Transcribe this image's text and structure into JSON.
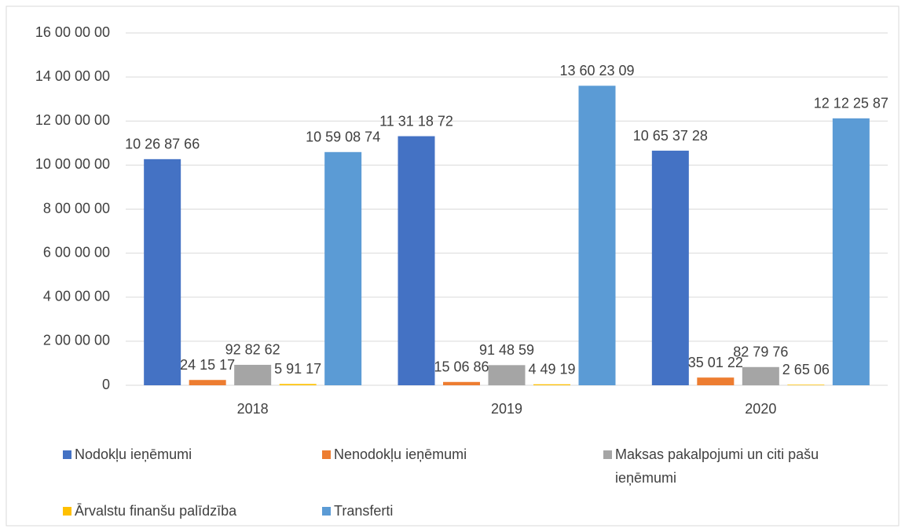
{
  "chart_data": {
    "type": "bar",
    "categories": [
      "2018",
      "2019",
      "2020"
    ],
    "series": [
      {
        "name": "Nodokļu ieņēmumi",
        "color": "#4472c4",
        "values": [
          10268766,
          11311872,
          10653728
        ],
        "value_labels": [
          "10 26 87 66",
          "11 31 18 72",
          "10 65 37 28"
        ]
      },
      {
        "name": "Nenodokļu ieņēmumi",
        "color": "#ed7d31",
        "values": [
          241517,
          150686,
          350122
        ],
        "value_labels": [
          "24 15 17",
          "15 06 86",
          "35 01 22"
        ]
      },
      {
        "name": "Maksas pakalpojumi un citi pašu ieņēmumi",
        "color": "#a5a5a5",
        "values": [
          928262,
          914859,
          827976
        ],
        "value_labels": [
          "92 82 62",
          "91 48 59",
          "82 79 76"
        ]
      },
      {
        "name": "Ārvalstu finanšu palīdzība",
        "color": "#ffc000",
        "values": [
          59117,
          44919,
          26506
        ],
        "value_labels": [
          "5 91 17",
          "4 49 19",
          "2 65 06"
        ]
      },
      {
        "name": "Transferti",
        "color": "#5b9bd5",
        "values": [
          10590874,
          13602309,
          12122587
        ],
        "value_labels": [
          "10 59 08 74",
          "13 60 23 09",
          "12 12 25 87"
        ]
      }
    ],
    "ylim": [
      0,
      16000000
    ],
    "yticks": [
      0,
      {
        "value": 2000000,
        "label": "2 00 00 00"
      },
      {
        "value": 4000000,
        "label": "4 00 00 00"
      },
      {
        "value": 6000000,
        "label": "6 00 00 00"
      },
      {
        "value": 8000000,
        "label": "8 00 00 00"
      },
      {
        "value": 10000000,
        "label": "10 00 00 00"
      },
      {
        "value": 12000000,
        "label": "12 00 00 00"
      },
      {
        "value": 14000000,
        "label": "14 00 00 00"
      },
      {
        "value": 16000000,
        "label": "16 00 00 00"
      }
    ],
    "grid": true,
    "legend": "bottom"
  }
}
